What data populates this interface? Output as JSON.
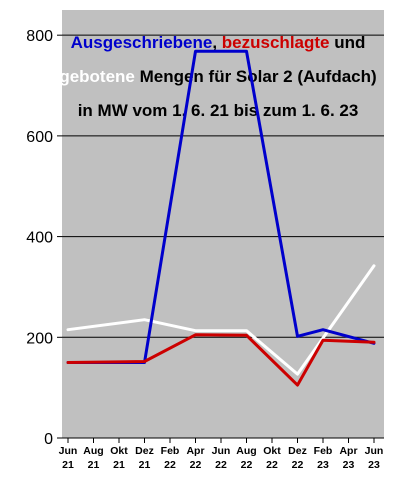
{
  "chart_data": {
    "type": "line",
    "title_parts": [
      {
        "text": "Ausgeschriebene",
        "color": "#0000cc"
      },
      {
        "text": ", ",
        "color": "#000000"
      },
      {
        "text": "bezuschlagte",
        "color": "#cc0000"
      },
      {
        "text": " und",
        "color": "#000000"
      }
    ],
    "title_line2_parts": [
      {
        "text": "gebotene",
        "color": "#ffffff"
      },
      {
        "text": "  Mengen für Solar 2 (Aufdach)",
        "color": "#000000"
      }
    ],
    "title_line3": "in MW vom 1. 6. 21 bis zum 1. 6. 23",
    "categories": [
      [
        "Jun",
        "21"
      ],
      [
        "Aug",
        "21"
      ],
      [
        "Okt",
        "21"
      ],
      [
        "Dez",
        "21"
      ],
      [
        "Feb",
        "22"
      ],
      [
        "Apr",
        "22"
      ],
      [
        "Jun",
        "22"
      ],
      [
        "Aug",
        "22"
      ],
      [
        "Okt",
        "22"
      ],
      [
        "Dez",
        "22"
      ],
      [
        "Feb",
        "23"
      ],
      [
        "Apr",
        "23"
      ],
      [
        "Jun",
        "23"
      ]
    ],
    "series": [
      {
        "key": "ausgeschrieben",
        "color": "#0000cc",
        "points": [
          [
            0,
            150
          ],
          [
            3,
            150
          ],
          [
            5,
            768
          ],
          [
            7,
            768
          ],
          [
            9,
            202
          ],
          [
            10,
            215
          ],
          [
            12,
            188
          ]
        ]
      },
      {
        "key": "bezuschlagt",
        "color": "#cc0000",
        "points": [
          [
            0,
            150
          ],
          [
            3,
            152
          ],
          [
            5,
            205
          ],
          [
            7,
            204
          ],
          [
            9,
            105
          ],
          [
            10,
            194
          ],
          [
            12,
            190
          ]
        ]
      },
      {
        "key": "geboten",
        "color": "#ffffff",
        "points": [
          [
            0,
            215
          ],
          [
            3,
            235
          ],
          [
            5,
            213
          ],
          [
            7,
            213
          ],
          [
            9,
            127
          ],
          [
            12,
            342
          ]
        ]
      }
    ],
    "yticks": [
      0,
      200,
      400,
      600,
      800
    ],
    "ylim": [
      0,
      850
    ],
    "grid": true,
    "plot_background": "#c0c0c0"
  }
}
